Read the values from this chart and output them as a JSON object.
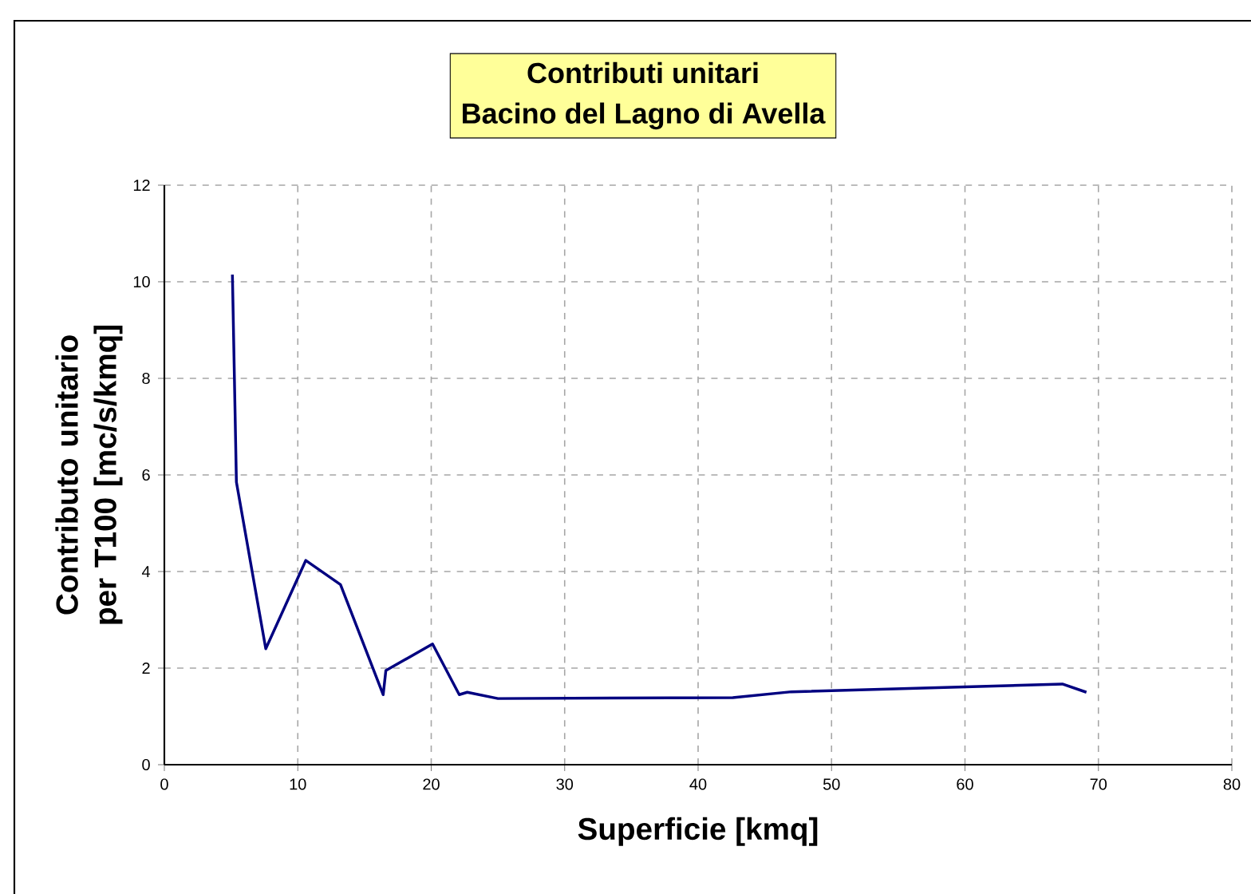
{
  "chart_data": {
    "type": "line",
    "title": "Contributi unitari",
    "subtitle": "Bacino del Lagno di Avella",
    "xlabel": "Superficie [kmq]",
    "ylabel": "Contributo unitario per T100 [mc/s/kmq]",
    "x": [
      5.1,
      5.4,
      7.6,
      10.6,
      13.2,
      16.4,
      16.6,
      20.1,
      22.1,
      22.7,
      25.0,
      42.6,
      47.0,
      67.3,
      69.1
    ],
    "series": [
      {
        "color": "#000080",
        "values": [
          10.15,
          5.85,
          2.4,
          4.23,
          3.73,
          1.45,
          1.95,
          2.5,
          1.45,
          1.5,
          1.37,
          1.39,
          1.51,
          1.67,
          1.5
        ]
      }
    ],
    "xlim": [
      0,
      80
    ],
    "xticks": [
      0,
      10,
      20,
      30,
      40,
      50,
      60,
      70,
      80
    ],
    "ylim": [
      0,
      12
    ],
    "yticks": [
      0,
      2,
      4,
      6,
      8,
      10,
      12
    ],
    "grid": true,
    "marker": "none",
    "line_style": "solid"
  }
}
